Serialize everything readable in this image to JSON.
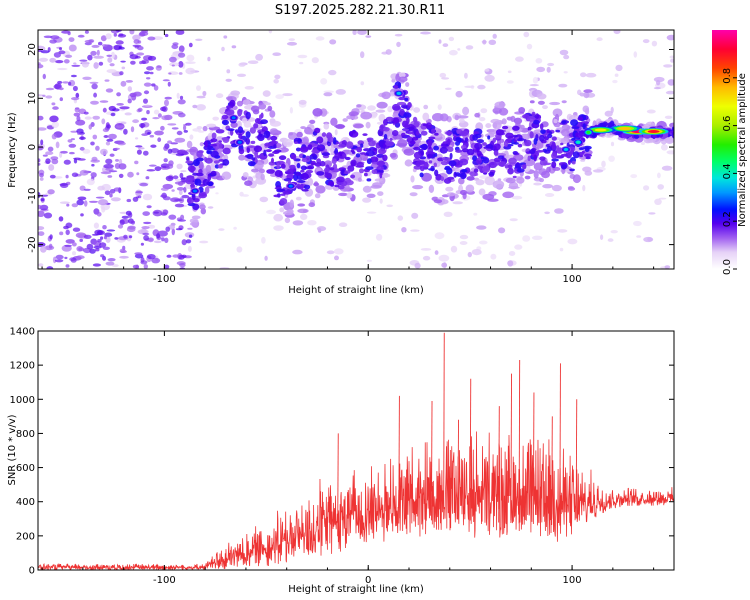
{
  "title": "S197.2025.282.21.30.R11",
  "chart_data": [
    {
      "type": "heatmap",
      "xlabel": "Height of straight line (km)",
      "ylabel": "Frequency (Hz)",
      "xlim": [
        -162,
        150
      ],
      "ylim": [
        -25,
        24
      ],
      "x_ticks": [
        -100,
        0,
        100
      ],
      "y_ticks": [
        -20,
        -10,
        0,
        10,
        20
      ],
      "ridge": {
        "x": [
          -85,
          -78,
          -72,
          -66,
          -60,
          -55,
          -50,
          -45,
          -40,
          -35,
          -30,
          -25,
          -20,
          -15,
          -10,
          -5,
          0,
          5,
          10,
          15,
          20,
          25,
          30,
          35,
          40,
          45,
          50,
          55,
          60,
          65,
          70,
          75,
          80,
          85,
          90,
          95,
          100,
          105,
          110,
          115,
          120,
          125,
          130,
          135,
          140,
          145,
          150
        ],
        "y": [
          -8,
          -3,
          0,
          5,
          2,
          0,
          3,
          -5,
          -8,
          -3,
          -5,
          -1,
          -2,
          -4,
          -3,
          0,
          -3,
          -2,
          3,
          10,
          4,
          -1,
          0,
          -3,
          -2,
          -1,
          -2,
          0,
          -3,
          1,
          -2,
          0,
          3,
          2,
          0,
          1,
          0,
          2,
          3,
          4,
          4,
          3,
          3,
          3,
          3,
          3,
          3
        ]
      },
      "strong_peaks": [
        {
          "x": 132,
          "y": 3.2,
          "amp": 0.95
        },
        {
          "x": 140,
          "y": 3.2,
          "amp": 0.9
        },
        {
          "x": 126,
          "y": 3.8,
          "amp": 0.75
        },
        {
          "x": 114,
          "y": 3.5,
          "amp": 0.7
        },
        {
          "x": 108,
          "y": 3.0,
          "amp": 0.5
        },
        {
          "x": 103,
          "y": 1.0,
          "amp": 0.4
        },
        {
          "x": 97,
          "y": -0.5,
          "amp": 0.35
        },
        {
          "x": 15,
          "y": 11,
          "amp": 0.35
        },
        {
          "x": -66,
          "y": 6,
          "amp": 0.3
        },
        {
          "x": -63,
          "y": 1,
          "amp": 0.3
        },
        {
          "x": -38,
          "y": -8,
          "amp": 0.3
        },
        {
          "x": -85,
          "y": -9,
          "amp": 0.3
        }
      ],
      "colorbar": {
        "label": "Normalized spectral amplitude",
        "range": [
          0,
          1
        ],
        "ticks": [
          0.0,
          0.2,
          0.4,
          0.6,
          0.8
        ],
        "tick_labels": [
          "0.0",
          "0.2",
          "0.4",
          "0.6",
          "0.8"
        ]
      }
    },
    {
      "type": "line",
      "xlabel": "Height of straight line (km)",
      "ylabel": "SNR (10 * v/v)",
      "xlim": [
        -162,
        150
      ],
      "ylim": [
        0,
        1400
      ],
      "x_ticks": [
        -100,
        0,
        100
      ],
      "y_ticks": [
        0,
        200,
        400,
        600,
        800,
        1000,
        1200,
        1400
      ],
      "color": "#ee3333",
      "envelope": {
        "x": [
          -162,
          -80,
          -75,
          -60,
          -40,
          -20,
          0,
          20,
          40,
          60,
          80,
          95,
          105,
          115,
          125,
          150
        ],
        "low": [
          0,
          0,
          0,
          10,
          30,
          80,
          150,
          180,
          200,
          180,
          170,
          160,
          220,
          330,
          370,
          380
        ],
        "high": [
          40,
          40,
          120,
          240,
          400,
          580,
          650,
          780,
          880,
          850,
          840,
          780,
          650,
          520,
          490,
          490
        ]
      },
      "spikes": [
        {
          "x": 37,
          "y": 1390
        },
        {
          "x": 74,
          "y": 1230
        },
        {
          "x": 94,
          "y": 1210
        },
        {
          "x": 50,
          "y": 1120
        },
        {
          "x": 70,
          "y": 1150
        },
        {
          "x": 81,
          "y": 1040
        },
        {
          "x": 102,
          "y": 1000
        },
        {
          "x": 31,
          "y": 990
        },
        {
          "x": 15,
          "y": 1020
        },
        {
          "x": 64,
          "y": 960
        },
        {
          "x": -15,
          "y": 800
        },
        {
          "x": 90,
          "y": 900
        },
        {
          "x": 44,
          "y": 880
        }
      ]
    }
  ]
}
